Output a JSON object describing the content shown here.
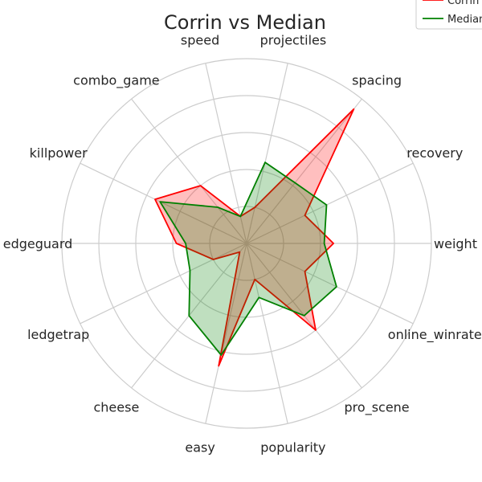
{
  "chart_data": {
    "type": "radar",
    "title": "Corrin vs Median",
    "categories": [
      "weight",
      "recovery",
      "spacing",
      "projectiles",
      "speed",
      "combo_game",
      "killpower",
      "edgeguard",
      "ledgetrap",
      "cheese",
      "easy",
      "popularity",
      "pro_scene",
      "online_winrate"
    ],
    "rlim": [
      0,
      1
    ],
    "grid_rings": [
      0.2,
      0.4,
      0.6,
      0.8,
      1.0
    ],
    "grid": true,
    "legend_placement": "top-right",
    "series": [
      {
        "name": "Corrin",
        "color": "#ff0000",
        "fill": "#ff0000",
        "values": [
          0.47,
          0.35,
          0.93,
          0.2,
          0.15,
          0.4,
          0.55,
          0.38,
          0.2,
          0.06,
          0.68,
          0.2,
          0.6,
          0.35
        ]
      },
      {
        "name": "Median",
        "color": "#008000",
        "fill": "#008000",
        "values": [
          0.42,
          0.48,
          0.42,
          0.45,
          0.15,
          0.25,
          0.52,
          0.33,
          0.34,
          0.5,
          0.62,
          0.3,
          0.5,
          0.54
        ]
      }
    ]
  }
}
